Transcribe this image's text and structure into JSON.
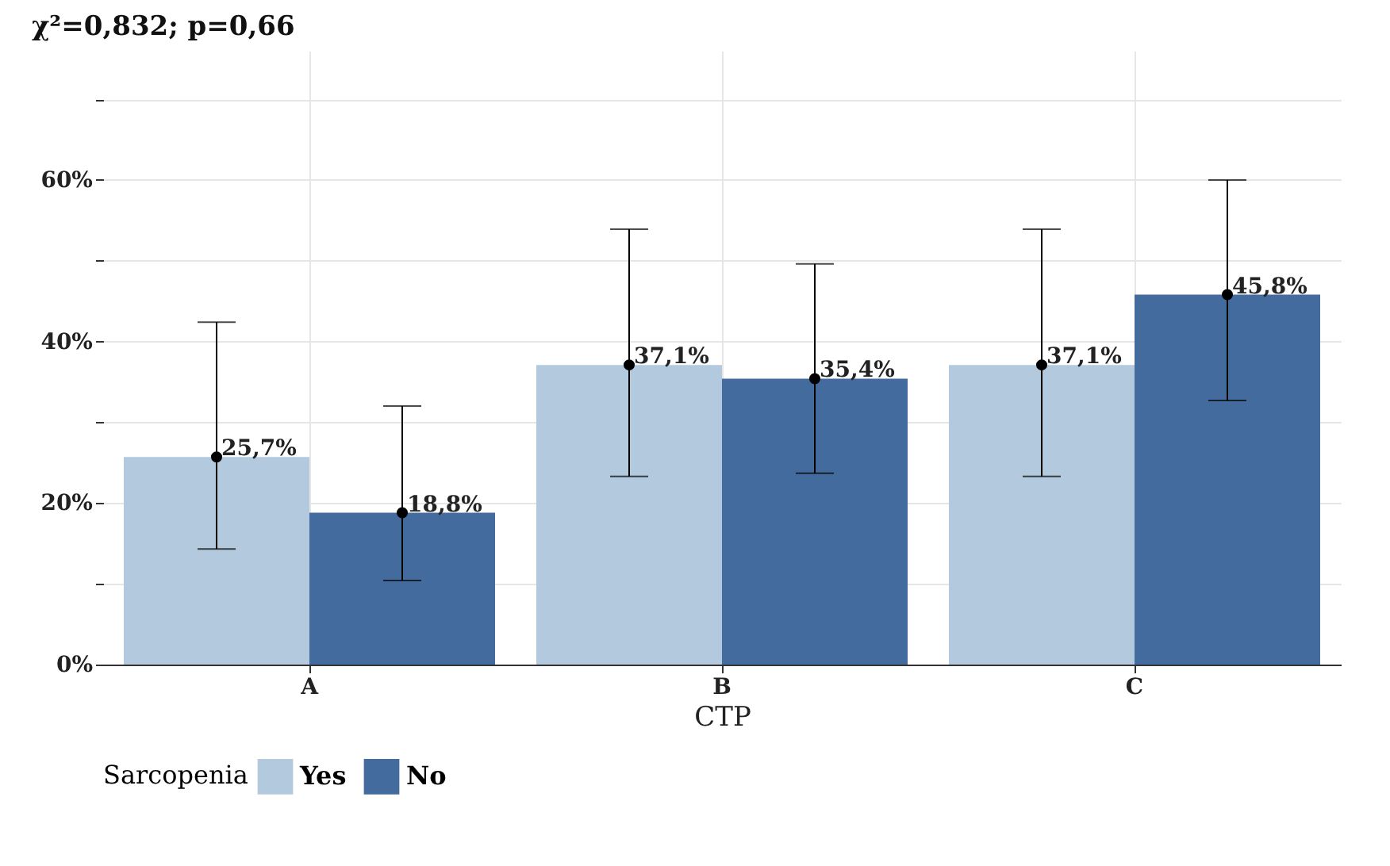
{
  "chart_data": {
    "type": "bar",
    "title": "χ²=0,832; p=0,66",
    "xlabel": "CTP",
    "legend_title": "Sarcopenia",
    "categories": [
      "A",
      "B",
      "C"
    ],
    "series": [
      {
        "name": "Yes",
        "color": "#b3cade",
        "values": [
          25.7,
          37.1,
          37.1
        ],
        "errors": [
          [
            14.3,
            42.4
          ],
          [
            23.3,
            53.9
          ],
          [
            23.3,
            53.9
          ]
        ],
        "value_labels": [
          "25,7%",
          "37,1%",
          "37,1%"
        ]
      },
      {
        "name": "No",
        "color": "#436b9e",
        "values": [
          18.8,
          35.4,
          45.8
        ],
        "errors": [
          [
            10.4,
            32.0
          ],
          [
            23.7,
            49.6
          ],
          [
            32.7,
            60.0
          ]
        ],
        "value_labels": [
          "18,8%",
          "35,4%",
          "45,8%"
        ]
      },
      {
        "type": "scatter",
        "x": [
          "A",
          "B",
          "C"
        ],
        "color": "#000000",
        "values": [
          25.7,
          37.1,
          37.1
        ]
      },
      {
        "type": "scatter",
        "x": [
          "A",
          "B",
          "C"
        ],
        "color": "#000000",
        "values": [
          18.8,
          35.4,
          45.8
        ]
      }
    ],
    "ylim": [
      0,
      76
    ],
    "yticks": [
      {
        "value": 0,
        "label": "0%"
      },
      {
        "value": 10,
        "label": null
      },
      {
        "value": 20,
        "label": "20%"
      },
      {
        "value": 30,
        "label": null
      },
      {
        "value": 40,
        "label": "40%"
      },
      {
        "value": 50,
        "label": null
      },
      {
        "value": 60,
        "label": "60%"
      },
      {
        "value": 70,
        "label": null
      }
    ],
    "grid": true,
    "legend": "bottom",
    "marker": "circle"
  }
}
